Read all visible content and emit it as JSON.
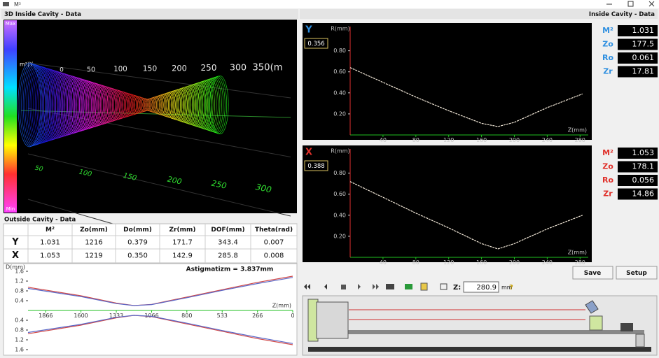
{
  "window": {
    "title": "M²"
  },
  "view_3d": {
    "title": "3D Inside Cavity - Data",
    "scale_max": "Max",
    "scale_min": "Min",
    "axis_name": "m²)Y",
    "z_labels": [
      "0",
      "50",
      "100",
      "150",
      "200",
      "250",
      "300",
      "350(m"
    ],
    "depth_labels": [
      "50",
      "100",
      "150",
      "200",
      "250",
      "300"
    ]
  },
  "outside": {
    "title": "Outside Cavity - Data",
    "columns": [
      "M²",
      "Zo(mm)",
      "Do(mm)",
      "Zr(mm)",
      "DOF(mm)",
      "Theta(rad)"
    ],
    "rows": [
      {
        "label": "Y",
        "color": "#2e8fe0",
        "cells": [
          "1.031",
          "1216",
          "0.379",
          "171.7",
          "343.4",
          "0.007"
        ]
      },
      {
        "label": "X",
        "color": "#e0302a",
        "cells": [
          "1.053",
          "1219",
          "0.350",
          "142.9",
          "285.8",
          "0.008"
        ]
      }
    ]
  },
  "inside": {
    "title": "Inside Cavity - Data",
    "panels": [
      {
        "color": "#2e8fe0",
        "metrics": [
          {
            "name": "M²",
            "value": "1.031"
          },
          {
            "name": "Zo",
            "value": "177.5"
          },
          {
            "name": "Ro",
            "value": "0.061"
          },
          {
            "name": "Zr",
            "value": "17.81"
          }
        ]
      },
      {
        "color": "#e0302a",
        "metrics": [
          {
            "name": "M²",
            "value": "1.053"
          },
          {
            "name": "Zo",
            "value": "178.1"
          },
          {
            "name": "Ro",
            "value": "0.056"
          },
          {
            "name": "Zr",
            "value": "14.86"
          }
        ]
      }
    ]
  },
  "controls": {
    "save": "Save",
    "setup": "Setup",
    "z_label": "Z:",
    "z_value": "280.9",
    "z_unit": "mm"
  },
  "chart_data": [
    {
      "type": "line",
      "label": "Y",
      "label_color": "#2e8fe0",
      "readout": "0.356",
      "y_label": "R(mm)",
      "x_label": "Z(mm)",
      "x": [
        0,
        40,
        80,
        120,
        160,
        180,
        200,
        240,
        283
      ],
      "series": [
        {
          "color": "#f2e8d8",
          "values": [
            0.64,
            0.5,
            0.36,
            0.23,
            0.11,
            0.08,
            0.12,
            0.26,
            0.39
          ]
        }
      ],
      "xlim": [
        0,
        290
      ],
      "ylim": [
        0,
        1.03
      ],
      "xticks": [
        40,
        80,
        120,
        160,
        200,
        240,
        280
      ],
      "yticks": [
        {
          "value": 0.2,
          "label": "0.20"
        },
        {
          "value": 0.4,
          "label": "0.40"
        },
        {
          "value": 0.6,
          "label": "0.60"
        },
        {
          "value": 0.8,
          "label": "0.80"
        }
      ],
      "background": "#000000",
      "x_axis_color": "#1fbf1f",
      "y_axis_color": "#e03030",
      "tick_color": "#c8c8c8"
    },
    {
      "type": "line",
      "label": "X",
      "label_color": "#e0302a",
      "readout": "0.388",
      "y_label": "R(mm)",
      "x_label": "Z(mm)",
      "x": [
        0,
        40,
        80,
        120,
        160,
        180,
        200,
        240,
        283
      ],
      "series": [
        {
          "color": "#f2e8d8",
          "values": [
            0.72,
            0.57,
            0.42,
            0.28,
            0.13,
            0.08,
            0.13,
            0.27,
            0.4
          ]
        }
      ],
      "xlim": [
        0,
        290
      ],
      "ylim": [
        0,
        1.03
      ],
      "xticks": [
        40,
        80,
        120,
        160,
        200,
        240,
        280
      ],
      "yticks": [
        {
          "value": 0.2,
          "label": "0.20"
        },
        {
          "value": 0.4,
          "label": "0.40"
        },
        {
          "value": 0.6,
          "label": "0.60"
        },
        {
          "value": 0.8,
          "label": "0.80"
        }
      ],
      "background": "#000000",
      "x_axis_color": "#1fbf1f",
      "y_axis_color": "#e03030",
      "tick_color": "#c8c8c8"
    },
    {
      "type": "line",
      "title": "Astigmatizm = 3.837mm",
      "y_label": "D(mm)",
      "x_label": "Z(mm)",
      "x": [
        2000,
        1600,
        1333,
        1200,
        1066,
        800,
        533,
        266,
        0
      ],
      "series": [
        {
          "color": "#d04848",
          "values": [
            0.95,
            0.6,
            0.3,
            0.2,
            0.25,
            0.55,
            0.85,
            1.15,
            1.4
          ]
        },
        {
          "color": "#5a68c8",
          "values": [
            0.9,
            0.57,
            0.28,
            0.2,
            0.24,
            0.52,
            0.82,
            1.1,
            1.35
          ]
        },
        {
          "color": "#d04848",
          "values": [
            -0.95,
            -0.6,
            -0.3,
            -0.2,
            -0.25,
            -0.55,
            -0.85,
            -1.15,
            -1.4
          ]
        },
        {
          "color": "#5a68c8",
          "values": [
            -0.9,
            -0.57,
            -0.28,
            -0.2,
            -0.24,
            -0.52,
            -0.82,
            -1.1,
            -1.35
          ]
        }
      ],
      "xlim": [
        2000,
        0
      ],
      "ylim": [
        -1.8,
        1.8
      ],
      "xticks": [
        1866,
        1600,
        1333,
        1066,
        800,
        533,
        266,
        0
      ],
      "yticks": [
        1.6,
        1.2,
        0.8,
        0.4,
        {
          "value": -0.4,
          "label": "0.4"
        },
        {
          "value": -0.8,
          "label": "0.8"
        },
        {
          "value": -1.2,
          "label": "1.2"
        },
        {
          "value": -1.6,
          "label": "1.6"
        }
      ],
      "background": "#ffffff",
      "x_axis_color": "#1fbf1f",
      "tick_color": "#333333"
    }
  ]
}
